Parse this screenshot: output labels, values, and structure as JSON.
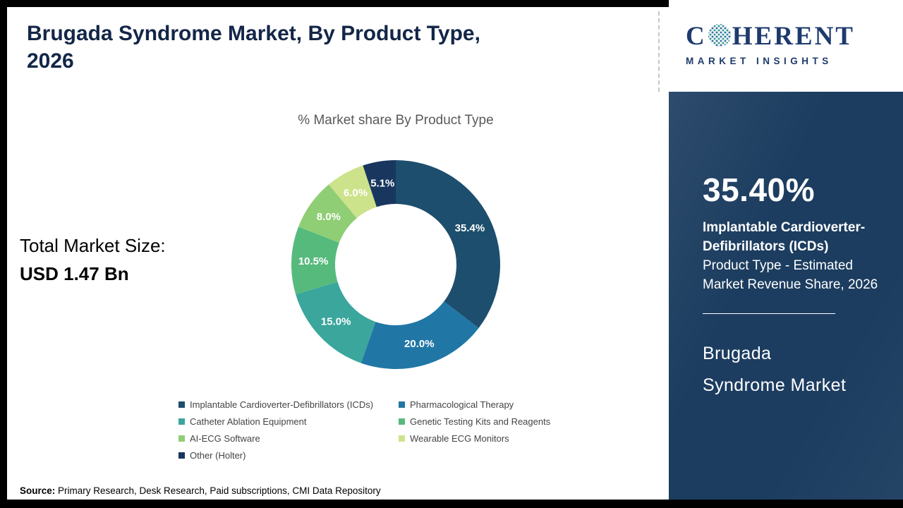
{
  "header": {
    "title": "Brugada Syndrome Market, By Product Type, 2026"
  },
  "logo": {
    "brand_c": "C",
    "brand_rest": "HERENT",
    "brand_bottom": "MARKET INSIGHTS"
  },
  "left_panel": {
    "total_label": "Total Market Size:",
    "total_value": "USD 1.47 Bn"
  },
  "chart_data": {
    "type": "pie",
    "donut": true,
    "title": "% Market share By Product Type",
    "categories": [
      "Implantable Cardioverter-Defibrillators (ICDs)",
      "Pharmacological Therapy",
      "Catheter Ablation Equipment",
      "Genetic Testing Kits and Reagents",
      "AI-ECG Software",
      "Wearable ECG Monitors",
      "Other (Holter)"
    ],
    "values": [
      35.4,
      20.0,
      15.0,
      10.5,
      8.0,
      6.0,
      5.1
    ],
    "labels": [
      "35.4%",
      "20.0%",
      "15.0%",
      "10.5%",
      "8.0%",
      "6.0%",
      "5.1%"
    ],
    "colors": [
      "#1d4e6d",
      "#2077a6",
      "#3aa69c",
      "#57ba7d",
      "#8fce74",
      "#cde38b",
      "#19375e"
    ],
    "start_angle": 0,
    "direction": "clockwise",
    "legend_position": "bottom"
  },
  "sidebar": {
    "stat_value": "35.40%",
    "stat_title": "Implantable Cardioverter-Defibrillators (ICDs)",
    "stat_desc": "Product Type - Estimated Market Revenue Share, 2026",
    "market_line1": "Brugada",
    "market_line2": "Syndrome Market"
  },
  "footer": {
    "source_label": "Source:",
    "source_text": " Primary Research, Desk Research, Paid subscriptions, CMI Data Repository"
  }
}
